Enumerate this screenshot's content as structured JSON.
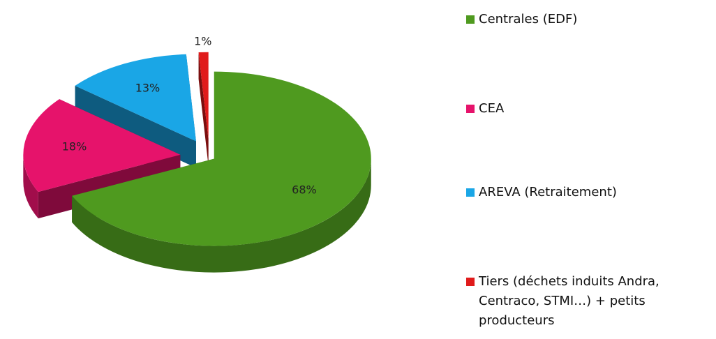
{
  "chart_data": {
    "type": "pie3d",
    "categories": [
      "Centrales (EDF)",
      "CEA",
      "AREVA (Retraitement)",
      "Tiers (déchets induits Andra, Centraco, STMI…) + petits producteurs"
    ],
    "values": [
      68,
      18,
      13,
      1
    ],
    "value_labels": [
      "68%",
      "18%",
      "13%",
      "1%"
    ],
    "colors": [
      "#4f9a1f",
      "#e6136b",
      "#1aa6e6",
      "#e01b1b"
    ],
    "legend": "right"
  }
}
